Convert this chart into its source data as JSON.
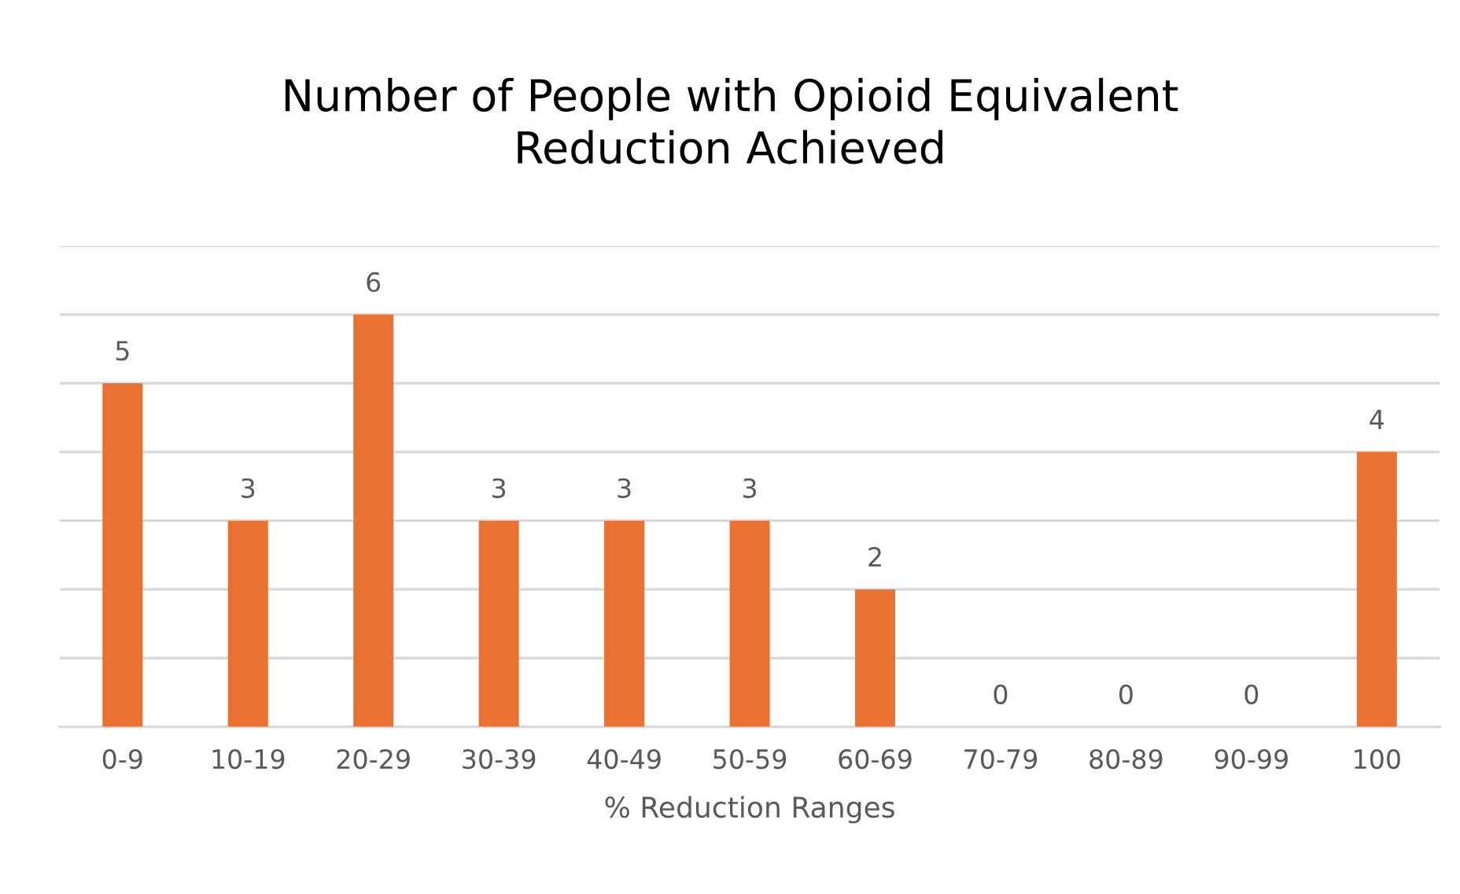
{
  "chart_data": {
    "type": "bar",
    "title": "Number of People with Opioid Equivalent\nReduction Achieved",
    "xlabel": "% Reduction Ranges",
    "categories": [
      "0-9",
      "10-19",
      "20-29",
      "30-39",
      "40-49",
      "50-59",
      "60-69",
      "70-79",
      "80-89",
      "90-99",
      "100"
    ],
    "values": [
      5,
      3,
      6,
      3,
      3,
      3,
      2,
      0,
      0,
      0,
      4
    ],
    "color": "#e97132",
    "ylim": [
      0,
      7
    ],
    "yticks": [
      {
        "value": 0,
        "label": null
      },
      {
        "value": 1,
        "label": null
      },
      {
        "value": 2,
        "label": null
      },
      {
        "value": 3,
        "label": null
      },
      {
        "value": 4,
        "label": null
      },
      {
        "value": 5,
        "label": null
      },
      {
        "value": 6,
        "label": null
      },
      {
        "value": 7,
        "label": null
      }
    ],
    "tick_labels": "x",
    "grid": "y",
    "data_labels": true
  }
}
